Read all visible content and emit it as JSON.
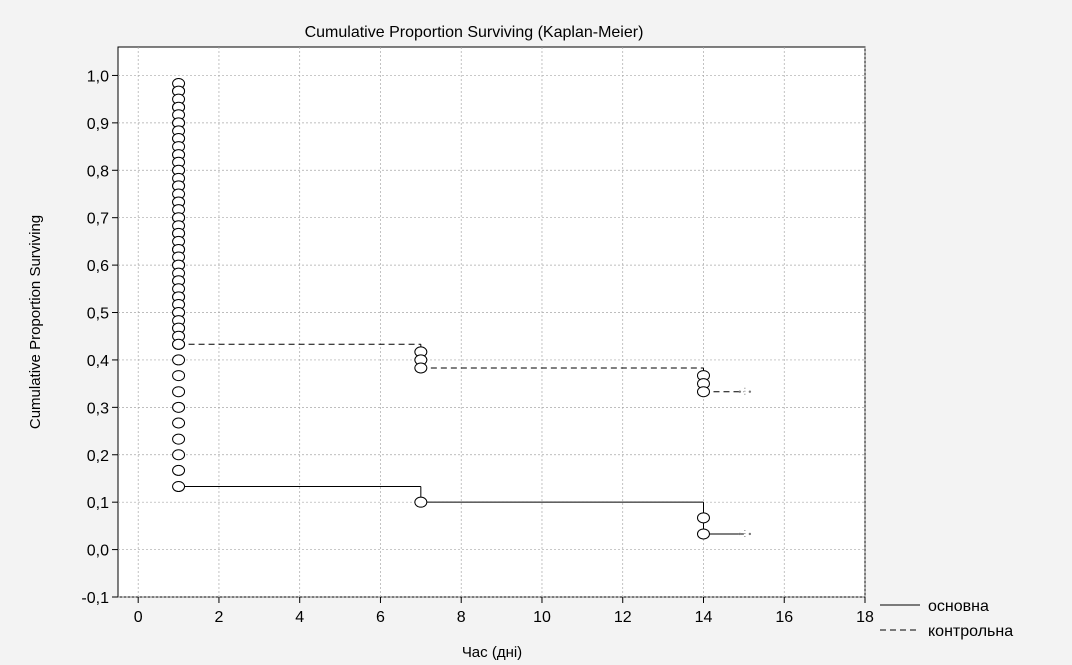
{
  "chart_data": {
    "type": "line",
    "title": "Cumulative Proportion Surviving (Kaplan-Meier)",
    "xlabel": "Час (дні)",
    "ylabel": "Cumulative Proportion Surviving",
    "xlim": [
      -0.5,
      18
    ],
    "ylim": [
      -0.1,
      1.06
    ],
    "x_ticks": [
      0,
      2,
      4,
      6,
      8,
      10,
      12,
      14,
      16,
      18
    ],
    "y_ticks": [
      -0.1,
      0.0,
      0.1,
      0.2,
      0.3,
      0.4,
      0.5,
      0.6,
      0.7,
      0.8,
      0.9,
      1.0
    ],
    "y_tick_labels": [
      "-0,1",
      "0,0",
      "0,1",
      "0,2",
      "0,3",
      "0,4",
      "0,5",
      "0,6",
      "0,7",
      "0,8",
      "0,9",
      "1,0"
    ],
    "grid": true,
    "legend_position": "bottom-right outside",
    "series": [
      {
        "name": "основна",
        "line_style": "solid",
        "steps": [
          {
            "x": [
              1,
              7
            ],
            "y": 0.133
          },
          {
            "x": [
              7,
              14
            ],
            "y": 0.1
          },
          {
            "x": [
              14,
              15
            ],
            "y": 0.033
          }
        ],
        "verticals": [
          {
            "x": 7,
            "y": [
              0.133,
              0.1
            ]
          },
          {
            "x": 14,
            "y": [
              0.1,
              0.033
            ]
          }
        ],
        "events": [
          {
            "x": 1,
            "y": [
              0.967,
              0.933,
              0.9,
              0.867,
              0.833,
              0.8,
              0.767,
              0.733,
              0.7,
              0.667,
              0.633,
              0.6,
              0.567,
              0.533,
              0.5,
              0.467,
              0.433,
              0.4,
              0.367,
              0.333,
              0.3,
              0.267,
              0.233,
              0.2,
              0.167,
              0.133
            ]
          },
          {
            "x": 7,
            "y": [
              0.1
            ]
          },
          {
            "x": 14,
            "y": [
              0.067,
              0.033
            ]
          }
        ],
        "censored": [
          {
            "x": 15,
            "y": 0.033
          }
        ]
      },
      {
        "name": "контрольна",
        "line_style": "dashed",
        "steps": [
          {
            "x": [
              1,
              7
            ],
            "y": 0.433
          },
          {
            "x": [
              7,
              14
            ],
            "y": 0.383
          },
          {
            "x": [
              14,
              15
            ],
            "y": 0.333
          }
        ],
        "verticals": [
          {
            "x": 7,
            "y": [
              0.433,
              0.383
            ]
          },
          {
            "x": 14,
            "y": [
              0.383,
              0.333
            ]
          }
        ],
        "events": [
          {
            "x": 1,
            "y": [
              0.983,
              0.967,
              0.95,
              0.933,
              0.917,
              0.9,
              0.883,
              0.867,
              0.85,
              0.833,
              0.817,
              0.8,
              0.783,
              0.767,
              0.75,
              0.733,
              0.717,
              0.7,
              0.683,
              0.667,
              0.65,
              0.633,
              0.617,
              0.6,
              0.583,
              0.567,
              0.55,
              0.533,
              0.517,
              0.5,
              0.483,
              0.467,
              0.45,
              0.433
            ]
          },
          {
            "x": 7,
            "y": [
              0.417,
              0.4,
              0.383
            ]
          },
          {
            "x": 14,
            "y": [
              0.367,
              0.35,
              0.333
            ]
          }
        ],
        "censored": [
          {
            "x": 15,
            "y": 0.333
          }
        ]
      }
    ]
  }
}
